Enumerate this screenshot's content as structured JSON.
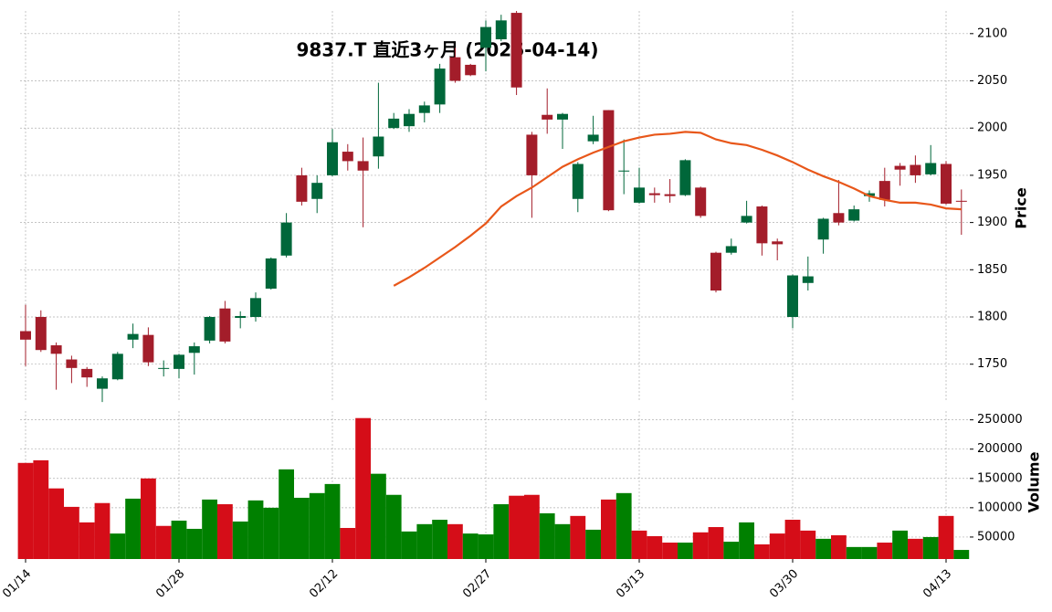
{
  "chart_data": {
    "type": "candlestick",
    "title": "9837.T  直近3ヶ月 (2026-04-14)",
    "ylabel": "Price",
    "volume_label": "Volume",
    "categories": [
      "01/14",
      null,
      null,
      null,
      null,
      null,
      null,
      null,
      null,
      null,
      "01/28",
      null,
      null,
      null,
      null,
      null,
      null,
      null,
      null,
      null,
      "02/12",
      null,
      null,
      null,
      null,
      null,
      null,
      null,
      null,
      null,
      "02/27",
      null,
      null,
      null,
      null,
      null,
      null,
      null,
      null,
      null,
      "03/13",
      null,
      null,
      null,
      null,
      null,
      null,
      null,
      null,
      null,
      "03/30",
      null,
      null,
      null,
      null,
      null,
      null,
      null,
      null,
      null,
      "04/13",
      null
    ],
    "open": [
      1785,
      1800,
      1770,
      1755,
      1745,
      1724,
      1734,
      1776,
      1781,
      1745,
      1745,
      1762,
      1775,
      1809,
      1799,
      1800,
      1830,
      1865,
      1950,
      1925,
      1950,
      1975,
      1965,
      1970,
      2000,
      2002,
      2016,
      2025,
      2075,
      2067,
      2085,
      2094,
      2122,
      1993,
      2014,
      2009,
      1925,
      1986,
      2019,
      1954,
      1921,
      1931,
      1930,
      1929,
      1937,
      1868,
      1868,
      1900,
      1917,
      1880,
      1800,
      1836,
      1882,
      1910,
      1902,
      1928,
      1944,
      1960,
      1961,
      1951,
      1962,
      1923
    ],
    "high": [
      1813,
      1807,
      1773,
      1759,
      1747,
      1737,
      1763,
      1793,
      1789,
      1754,
      1761,
      1773,
      1801,
      1817,
      1806,
      1826,
      1863,
      1910,
      1958,
      1950,
      1999,
      1983,
      1990,
      2048,
      2016,
      2020,
      2028,
      2068,
      2085,
      2068,
      2114,
      2120,
      2124,
      1996,
      2042,
      2016,
      1964,
      2013,
      2019,
      1988,
      1958,
      1937,
      1946,
      1967,
      1938,
      1869,
      1883,
      1923,
      1918,
      1883,
      1845,
      1864,
      1905,
      1945,
      1918,
      1934,
      1958,
      1963,
      1971,
      1982,
      1965,
      1935
    ],
    "low": [
      1748,
      1763,
      1723,
      1730,
      1726,
      1710,
      1733,
      1767,
      1748,
      1737,
      1735,
      1739,
      1772,
      1772,
      1788,
      1795,
      1829,
      1863,
      1918,
      1910,
      1949,
      1955,
      1895,
      1957,
      1999,
      1996,
      2006,
      2016,
      2048,
      2055,
      2060,
      2092,
      2035,
      1905,
      1994,
      1978,
      1911,
      1983,
      1912,
      1930,
      1920,
      1921,
      1921,
      1928,
      1905,
      1826,
      1866,
      1899,
      1865,
      1860,
      1788,
      1828,
      1867,
      1897,
      1901,
      1922,
      1917,
      1939,
      1942,
      1950,
      1919,
      1887
    ],
    "close": [
      1776,
      1765,
      1761,
      1746,
      1736,
      1735,
      1761,
      1782,
      1752,
      1746,
      1760,
      1769,
      1800,
      1774,
      1801,
      1820,
      1862,
      1900,
      1922,
      1942,
      1985,
      1965,
      1955,
      1991,
      2010,
      2015,
      2024,
      2063,
      2050,
      2056,
      2107,
      2114,
      2043,
      1950,
      2009,
      2015,
      1962,
      1993,
      1913,
      1955,
      1937,
      1929,
      1928,
      1966,
      1907,
      1828,
      1875,
      1907,
      1878,
      1877,
      1844,
      1843,
      1904,
      1900,
      1914,
      1931,
      1924,
      1956,
      1950,
      1963,
      1920,
      1922
    ],
    "volume": [
      176500,
      181000,
      133000,
      101500,
      75000,
      108000,
      56000,
      115500,
      150000,
      69000,
      78000,
      64000,
      114000,
      106000,
      76500,
      112500,
      100000,
      165500,
      117000,
      125000,
      140500,
      65500,
      253000,
      158000,
      122000,
      59500,
      72000,
      79500,
      72000,
      56000,
      54500,
      106000,
      120500,
      122000,
      90500,
      72000,
      86000,
      62500,
      114000,
      125000,
      61000,
      51500,
      40500,
      40500,
      58000,
      67000,
      42000,
      75000,
      37500,
      56000,
      79500,
      61000,
      47000,
      53000,
      33000,
      33000,
      40500,
      61000,
      47000,
      50000,
      86000,
      28000
    ],
    "ma": {
      "color": "#e8571a",
      "values": [
        null,
        null,
        null,
        null,
        null,
        null,
        null,
        null,
        null,
        null,
        null,
        null,
        null,
        null,
        null,
        null,
        null,
        null,
        null,
        null,
        null,
        null,
        null,
        null,
        1833,
        1842,
        1852,
        1863,
        1874,
        1886,
        1899,
        1917,
        1928,
        1937,
        1948,
        1959,
        1967,
        1974,
        1980,
        1986,
        1990,
        1993,
        1994,
        1996,
        1995,
        1988,
        1984,
        1982,
        1977,
        1971,
        1964,
        1956,
        1949,
        1943,
        1936,
        1928,
        1924,
        1921,
        1921,
        1919,
        1915,
        1914
      ]
    },
    "up_color": "#00673a",
    "down_color": "#a31d2a",
    "volume_up_color": "#008000",
    "volume_down_color": "#d50d18",
    "ylim": [
      1712,
      2124
    ],
    "yticks": [
      1750,
      1800,
      1850,
      1900,
      1950,
      2000,
      2050,
      2100
    ],
    "volume_ylim": [
      12500,
      265000
    ],
    "volume_yticks": [
      50000,
      100000,
      150000,
      200000,
      250000
    ],
    "grid": true
  }
}
